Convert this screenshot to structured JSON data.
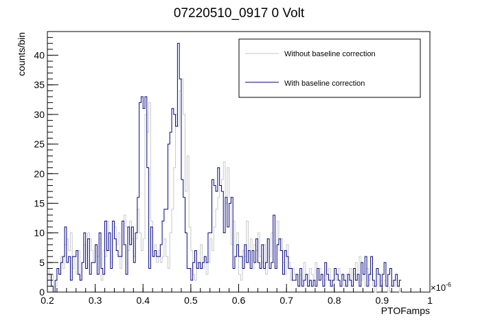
{
  "chart_data": {
    "type": "line",
    "title": "07220510_0917 0 Volt",
    "xlabel": "PTOFamps",
    "ylabel": "counts/bin",
    "x_multiplier_label": "×10",
    "x_multiplier_exponent": "-6",
    "xlim": [
      0.2,
      1.0
    ],
    "ylim": [
      0,
      44
    ],
    "x_ticks": [
      0.2,
      0.3,
      0.4,
      0.5,
      0.6,
      0.7,
      0.8,
      0.9,
      1.0
    ],
    "x_tick_labels": [
      "0.2",
      "0.3",
      "0.4",
      "0.5",
      "0.6",
      "0.7",
      "0.8",
      "0.9",
      "1"
    ],
    "y_ticks": [
      0,
      5,
      10,
      15,
      20,
      25,
      30,
      35,
      40
    ],
    "y_tick_labels": [
      "0",
      "5",
      "10",
      "15",
      "20",
      "25",
      "30",
      "35",
      "40"
    ],
    "bin_width": 0.004,
    "x_start": 0.2,
    "legend": {
      "placement": "top-right"
    },
    "series": [
      {
        "name": "Without baseline correction",
        "color": "#c8c8c8",
        "values": [
          4,
          2,
          3,
          0,
          1,
          4,
          3,
          6,
          4,
          8,
          9,
          7,
          10,
          4,
          6,
          3,
          7,
          2,
          5,
          8,
          4,
          10,
          9,
          7,
          5,
          8,
          6,
          9,
          2,
          7,
          6,
          12,
          7,
          5,
          9,
          11,
          8,
          10,
          4,
          8,
          13,
          11,
          7,
          12,
          9,
          6,
          9,
          14,
          10,
          7,
          9,
          30,
          27,
          32,
          12,
          6,
          8,
          5,
          7,
          5,
          6,
          9,
          6,
          4,
          10,
          14,
          21,
          30,
          28,
          34,
          36,
          30,
          17,
          23,
          11,
          7,
          3,
          2,
          5,
          4,
          8,
          4,
          6,
          3,
          5,
          9,
          7,
          11,
          14,
          16,
          18,
          19,
          22,
          15,
          21,
          16,
          8,
          12,
          6,
          10,
          3,
          2,
          7,
          6,
          12,
          5,
          9,
          4,
          8,
          7,
          10,
          6,
          5,
          8,
          3,
          9,
          6,
          10,
          5,
          4,
          12,
          7,
          9,
          5,
          3,
          8,
          5,
          2,
          4,
          3,
          2,
          1,
          3,
          2,
          5,
          3,
          1,
          4,
          3,
          2,
          5,
          2,
          4,
          3,
          1,
          2,
          3,
          4,
          2,
          1,
          3,
          2,
          4,
          3,
          2,
          1,
          3,
          2,
          4,
          1,
          3,
          5,
          2,
          6,
          2,
          3,
          1,
          4,
          2,
          3,
          1,
          0,
          3,
          1,
          2,
          1,
          2,
          1,
          0,
          1,
          2,
          1,
          2,
          1,
          0
        ]
      },
      {
        "name": "With baseline correction",
        "color": "#000080",
        "values": [
          3,
          3,
          1,
          0,
          2,
          4,
          3,
          5,
          6,
          11,
          5,
          6,
          2,
          6,
          6,
          7,
          3,
          2,
          5,
          10,
          4,
          9,
          3,
          5,
          5,
          8,
          3,
          10,
          4,
          3,
          12,
          7,
          10,
          4,
          12,
          9,
          7,
          6,
          6,
          12,
          8,
          3,
          11,
          8,
          11,
          5,
          10,
          16,
          32,
          33,
          31,
          33,
          21,
          4,
          11,
          6,
          7,
          6,
          6,
          8,
          12,
          14,
          14,
          25,
          27,
          31,
          30,
          28,
          42,
          36,
          19,
          16,
          10,
          4,
          4,
          2,
          5,
          7,
          4,
          5,
          4,
          5,
          6,
          5,
          10,
          10,
          19,
          18,
          17,
          21,
          18,
          17,
          10,
          16,
          11,
          15,
          16,
          4,
          6,
          8,
          6,
          6,
          4,
          8,
          5,
          7,
          4,
          7,
          5,
          9,
          5,
          4,
          8,
          4,
          5,
          9,
          4,
          5,
          13,
          4,
          8,
          9,
          7,
          3,
          7,
          6,
          4,
          4,
          2,
          2,
          3,
          1,
          4,
          1,
          2,
          3,
          1,
          2,
          1,
          2,
          1,
          4,
          2,
          3,
          1,
          5,
          3,
          2,
          1,
          2,
          4,
          3,
          2,
          1,
          3,
          2,
          1,
          3,
          2,
          1,
          4,
          2,
          3,
          1,
          5,
          3,
          6,
          1,
          3,
          6,
          2,
          1,
          4,
          3,
          1,
          3,
          5,
          1,
          3,
          4,
          1,
          2,
          3,
          1,
          2
        ]
      }
    ]
  }
}
